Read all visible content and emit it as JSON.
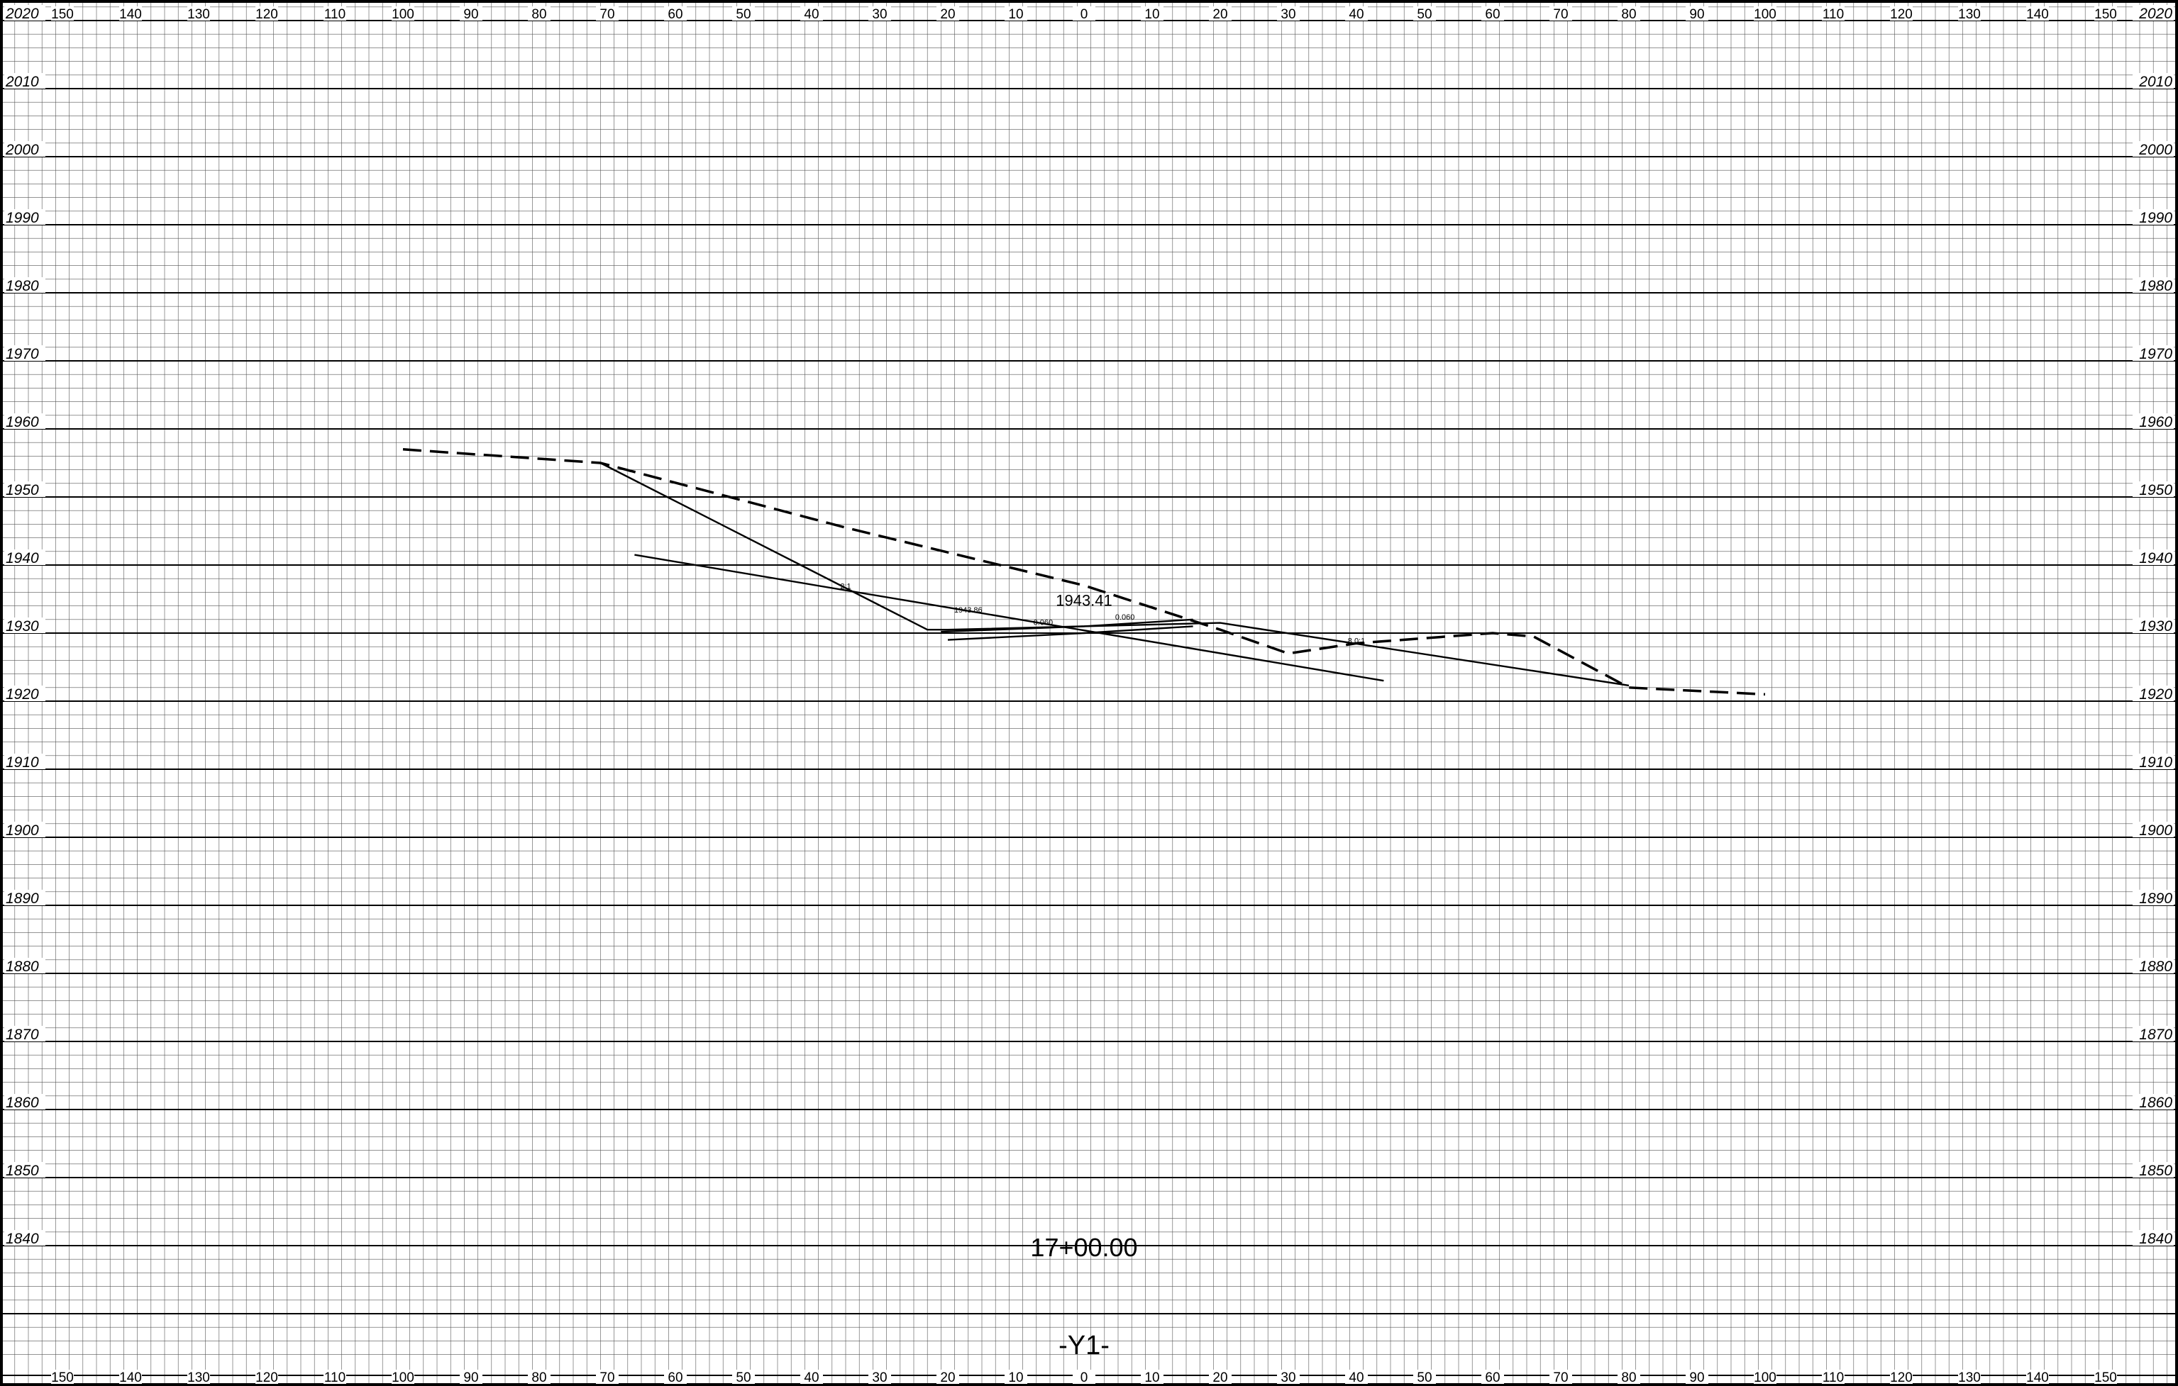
{
  "sheet": {
    "station_label": "17+00.00",
    "line_label": "-Y1-",
    "offset_labels": [
      "150",
      "140",
      "130",
      "120",
      "110",
      "100",
      "90",
      "80",
      "70",
      "60",
      "50",
      "40",
      "30",
      "20",
      "10",
      "0",
      "10",
      "20",
      "30",
      "40",
      "50",
      "60",
      "70",
      "80",
      "90",
      "100",
      "110",
      "120",
      "130",
      "140",
      "150"
    ],
    "elevation_labels": [
      "2020",
      "2010",
      "2000",
      "1990",
      "1980",
      "1970",
      "1960",
      "1950",
      "1940",
      "1930",
      "1920",
      "1910",
      "1900",
      "1890",
      "1880",
      "1870",
      "1860",
      "1850",
      "1840"
    ]
  },
  "chart_data": {
    "type": "line",
    "title": "",
    "xlabel": "",
    "ylabel": "",
    "xlim": [
      -150,
      150
    ],
    "ylim": [
      1830,
      2020
    ],
    "grid": true,
    "series": [
      {
        "key": "existing_ground",
        "style": "dashed",
        "points": [
          [
            -100,
            1957
          ],
          [
            -71,
            1955
          ],
          [
            -35,
            1945.5
          ],
          [
            0,
            1937
          ],
          [
            20,
            1930.5
          ],
          [
            30,
            1927
          ],
          [
            40,
            1928.5
          ],
          [
            60,
            1930
          ],
          [
            66,
            1929.5
          ],
          [
            80,
            1922
          ],
          [
            100,
            1921
          ]
        ]
      },
      {
        "key": "proposed_section_left",
        "style": "solid",
        "points": [
          [
            -71,
            1955
          ],
          [
            -23,
            1930.5
          ],
          [
            -20,
            1930.5
          ],
          [
            0,
            1931
          ],
          [
            20,
            1931.5
          ],
          [
            80,
            1922.3
          ]
        ]
      },
      {
        "key": "pavement_top",
        "style": "solid",
        "points": [
          [
            -21,
            1930.2
          ],
          [
            0,
            1931
          ],
          [
            16,
            1932
          ]
        ]
      },
      {
        "key": "pavement_bottom",
        "style": "solid",
        "points": [
          [
            -20,
            1929
          ],
          [
            0,
            1930
          ],
          [
            16,
            1931
          ]
        ]
      },
      {
        "key": "crossing_line",
        "style": "solid",
        "points": [
          [
            -66,
            1941.5
          ],
          [
            44,
            1923
          ]
        ]
      }
    ],
    "annotations": [
      {
        "text": "1943.41",
        "x": 0,
        "y": 1934
      },
      {
        "text": "0.060",
        "x": -6,
        "y": 1931.2
      },
      {
        "text": "0.060",
        "x": 6,
        "y": 1932
      },
      {
        "text": "2:1",
        "x": -35,
        "y": 1936.5
      },
      {
        "text": "8.0:1",
        "x": 40,
        "y": 1928.5
      },
      {
        "text": "1943.86",
        "x": -17,
        "y": 1933
      }
    ]
  }
}
